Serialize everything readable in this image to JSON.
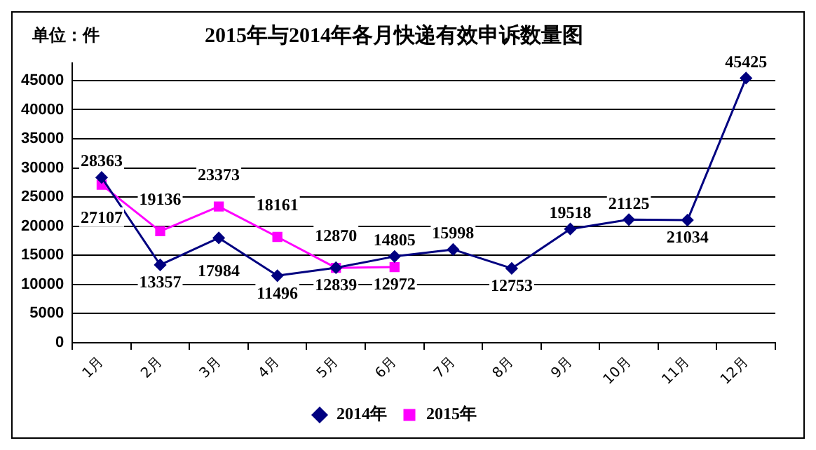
{
  "chart_data": {
    "type": "line",
    "title": "2015年与2014年各月快递有效申诉数量图",
    "annotations": [
      "单位：件"
    ],
    "categories": [
      "1月",
      "2月",
      "3月",
      "4月",
      "5月",
      "6月",
      "7月",
      "8月",
      "9月",
      "10月",
      "11月",
      "12月"
    ],
    "series": [
      {
        "name": "2014年",
        "color": "#000080",
        "marker": "diamond",
        "values": [
          28363,
          13357,
          17984,
          11496,
          12870,
          14805,
          15998,
          12753,
          19518,
          21125,
          21034,
          45425
        ]
      },
      {
        "name": "2015年",
        "color": "#ff00ff",
        "marker": "square",
        "values": [
          27107,
          19136,
          23373,
          18161,
          12839,
          12972,
          null,
          null,
          null,
          null,
          null,
          null
        ]
      }
    ],
    "ylim": [
      0,
      48000
    ],
    "yticks": [
      0,
      5000,
      10000,
      15000,
      20000,
      25000,
      30000,
      35000,
      40000,
      45000
    ],
    "grid": "y",
    "legend": "bottom",
    "data_labels": true,
    "line_style": "solid"
  }
}
